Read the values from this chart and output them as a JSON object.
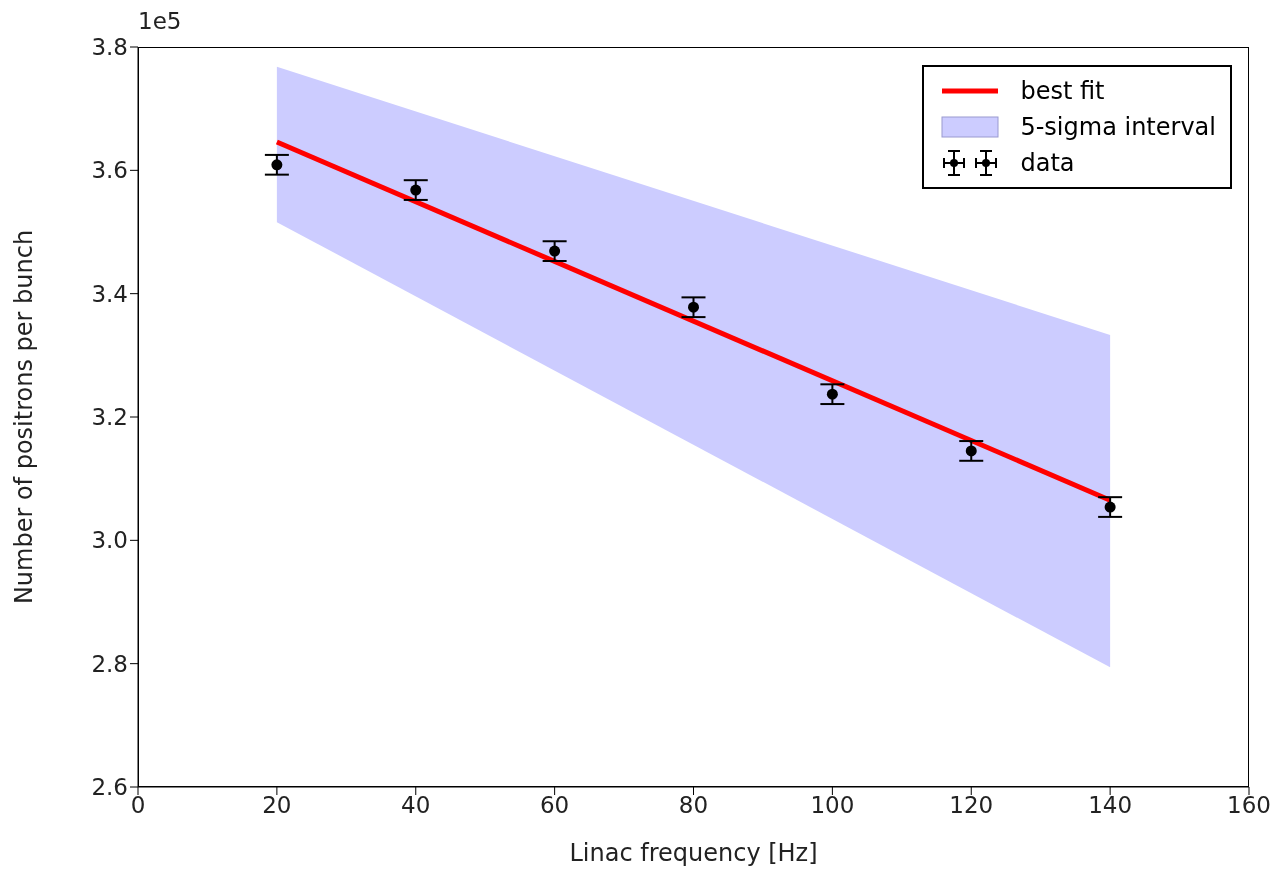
{
  "chart_data": {
    "type": "line",
    "xlabel": "Linac frequency [Hz]",
    "ylabel": "Number of positrons per bunch",
    "annotations": [
      "1e5"
    ],
    "xlim": [
      0,
      160
    ],
    "xticks": [
      0,
      20,
      40,
      60,
      80,
      100,
      120,
      140,
      160
    ],
    "ylim": [
      2.6,
      3.8
    ],
    "yticks": [
      2.6,
      2.8,
      {
        "value": 3.0,
        "label": "3.0"
      },
      3.2,
      3.4,
      3.6,
      3.8
    ],
    "grid": false,
    "legend": "top right",
    "series": [
      {
        "name": "best fit",
        "color": "#ff0000",
        "x": [
          20,
          140
        ],
        "values": [
          3.646,
          3.065
        ],
        "lower": [
          3.516,
          2.794
        ],
        "upper": [
          3.768,
          3.333
        ]
      },
      {
        "name": "5-sigma interval",
        "type": "area",
        "color": "#ccccff"
      },
      {
        "name": "data",
        "type": "scatter",
        "marker": "circle",
        "color": "#000000",
        "x": [
          20,
          40,
          60,
          80,
          100,
          120,
          140
        ],
        "values": [
          3.609,
          3.568,
          3.469,
          3.378,
          3.237,
          3.145,
          3.054
        ],
        "errors": [
          0.016,
          0.016,
          0.016,
          0.016,
          0.016,
          0.016,
          0.016
        ]
      }
    ]
  }
}
